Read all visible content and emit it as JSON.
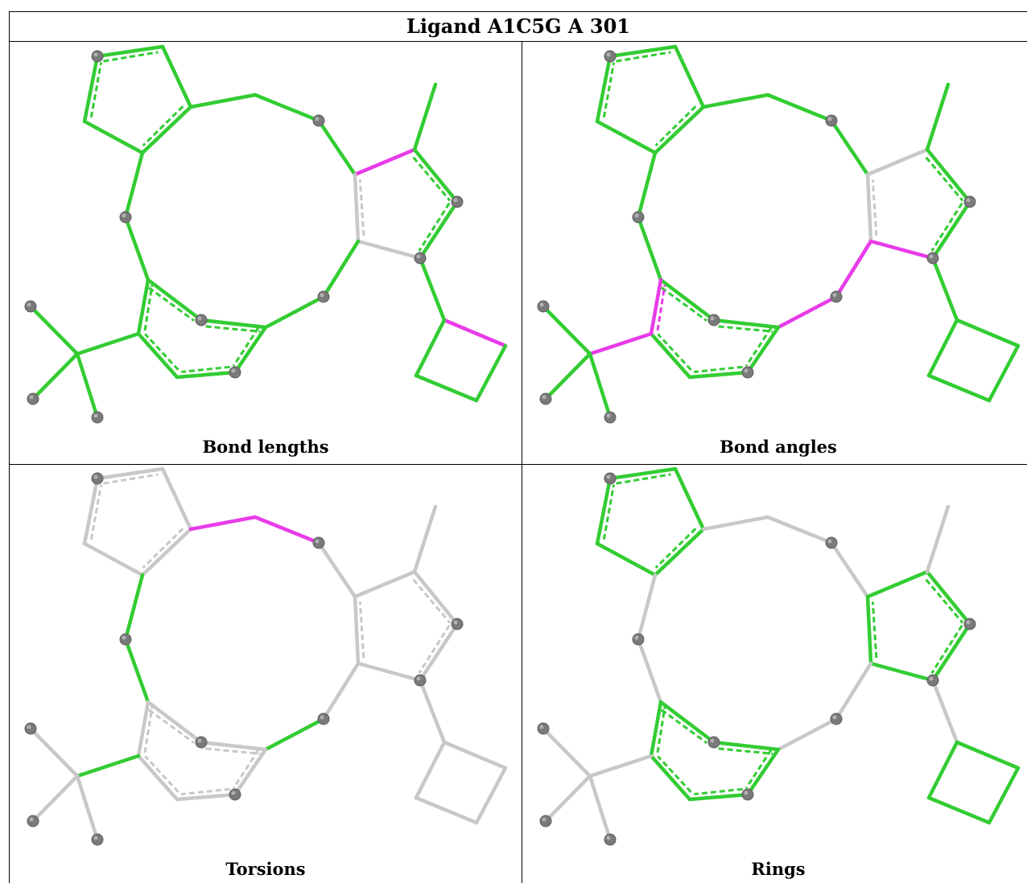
{
  "title": "Ligand A1C5G A 301",
  "panels": [
    {
      "caption": "Bond lengths"
    },
    {
      "caption": "Bond angles"
    },
    {
      "caption": "Torsions"
    },
    {
      "caption": "Rings"
    }
  ],
  "colors": {
    "ok": "#33cc33",
    "outlier": "#e83be8",
    "inactive": "#c8c8c8",
    "atom": "#7a7a7a"
  }
}
